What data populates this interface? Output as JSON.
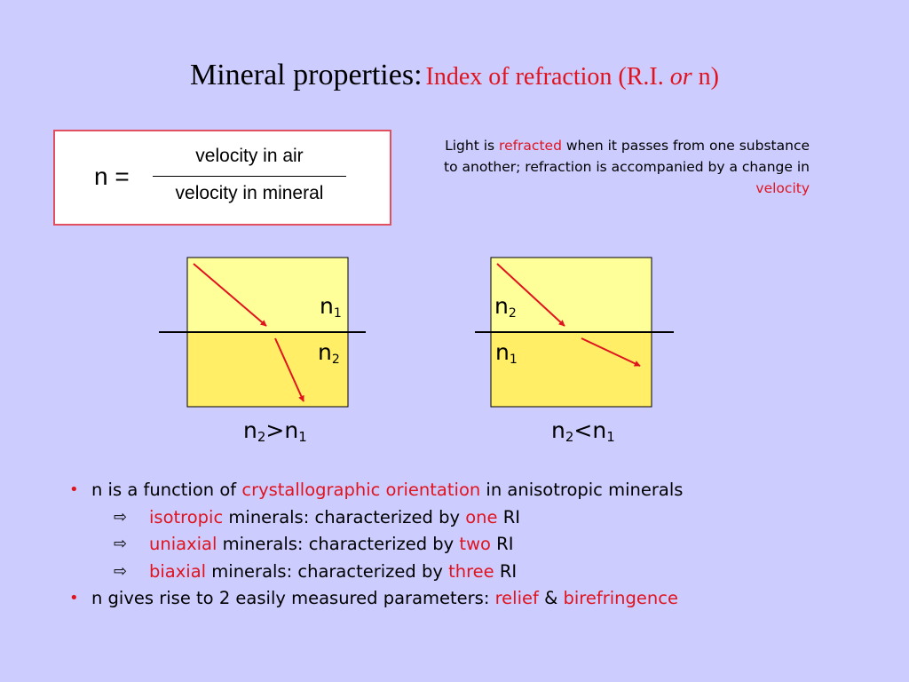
{
  "title": {
    "main": "Mineral properties:",
    "sub_before": "Index of refraction (R.I.",
    "sub_or": "or",
    "sub_after": "n)"
  },
  "formula": {
    "lhs": "n =",
    "numerator": "velocity in air",
    "denominator": "velocity in mineral"
  },
  "note": {
    "p1": "Light is ",
    "p2": "refracted",
    "p3": " when it passes from one substance to another; refraction is accompanied by a change in ",
    "p4": "velocity"
  },
  "diagrams": {
    "left": {
      "top_label": {
        "base": "n",
        "sub": "1"
      },
      "bottom_label": {
        "base": "n",
        "sub": "2"
      },
      "caption": {
        "a": "n",
        "a_sub": "2",
        "op": ">",
        "b": "n",
        "b_sub": "1"
      }
    },
    "right": {
      "top_label": {
        "base": "n",
        "sub": "2"
      },
      "bottom_label": {
        "base": "n",
        "sub": "1"
      },
      "caption": {
        "a": "n",
        "a_sub": "2",
        "op": "<",
        "b": "n",
        "b_sub": "1"
      }
    }
  },
  "bullets": [
    {
      "marker": "•",
      "parts": [
        "n is a function of ",
        "crystallographic orientation",
        " in anisotropic minerals"
      ]
    },
    {
      "marker": "⇨",
      "parts": [
        "isotropic",
        " minerals: characterized by ",
        "one",
        " RI"
      ]
    },
    {
      "marker": "⇨",
      "parts": [
        "uniaxial",
        " minerals: characterized by ",
        "two",
        " RI"
      ]
    },
    {
      "marker": "⇨",
      "parts": [
        "biaxial",
        " minerals: characterized by ",
        "three",
        " RI"
      ]
    },
    {
      "marker": "•",
      "parts": [
        "n gives rise to 2 easily measured parameters: ",
        "relief",
        " & ",
        "birefringence"
      ]
    }
  ],
  "colors": {
    "background": "#ccccff",
    "accent_red": "#e0141e",
    "upper_medium": "#ffff99",
    "lower_medium": "#ffee66",
    "box_border": "#e05060"
  }
}
